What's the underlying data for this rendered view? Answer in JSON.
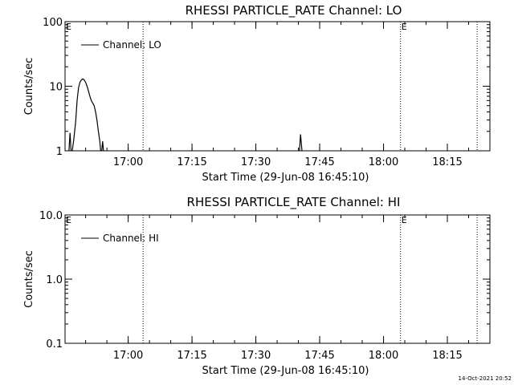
{
  "footer": {
    "timestamp": "14-Oct-2021 20:52"
  },
  "chart_data": [
    {
      "type": "line",
      "title": "RHESSI PARTICLE_RATE Channel: LO",
      "xlabel": "Start Time (29-Jun-08 16:45:10)",
      "ylabel": "Counts/sec",
      "y_scale": "log",
      "ylim": [
        1,
        100
      ],
      "y_ticks": [
        1,
        10,
        100
      ],
      "y_tick_labels": [
        "1",
        "10",
        "100"
      ],
      "xlim": [
        "16:45:10",
        "18:25:00"
      ],
      "x_ticks": [
        "17:00",
        "17:15",
        "17:30",
        "17:45",
        "18:00",
        "18:15"
      ],
      "legend": {
        "position": "top-left",
        "entries": [
          "Channel: LO"
        ]
      },
      "vertical_markers": [
        {
          "time": "17:03:30",
          "label": ""
        },
        {
          "time": "18:04:00",
          "label": ""
        },
        {
          "time": "18:22:00",
          "label": ""
        }
      ],
      "marker_labels": [
        {
          "time": "16:45:10",
          "text": "E"
        },
        {
          "time": "18:04:00",
          "text": "E"
        }
      ],
      "series": [
        {
          "points": [
            [
              "16:46:00",
              0.8
            ],
            [
              "16:46:20",
              1.9
            ],
            [
              "16:46:40",
              0.8
            ],
            [
              "16:47:10",
              1.4
            ],
            [
              "16:47:40",
              2.8
            ],
            [
              "16:48:00",
              6.0
            ],
            [
              "16:48:20",
              9.5
            ],
            [
              "16:48:40",
              11.5
            ],
            [
              "16:49:00",
              12.5
            ],
            [
              "16:49:20",
              13.0
            ],
            [
              "16:49:40",
              12.5
            ],
            [
              "16:50:00",
              11.5
            ],
            [
              "16:50:20",
              10.0
            ],
            [
              "16:50:40",
              8.5
            ],
            [
              "16:51:00",
              7.0
            ],
            [
              "16:51:20",
              6.0
            ],
            [
              "16:51:40",
              5.5
            ],
            [
              "16:52:00",
              5.0
            ],
            [
              "16:52:20",
              4.0
            ],
            [
              "16:52:40",
              3.0
            ],
            [
              "16:53:00",
              2.0
            ],
            [
              "16:53:20",
              1.4
            ],
            [
              "16:53:40",
              0.8
            ],
            [
              "16:54:00",
              1.4
            ],
            [
              "16:54:20",
              0.8
            ]
          ]
        },
        {
          "points": [
            [
              "17:40:10",
              0.8
            ],
            [
              "17:40:30",
              1.8
            ],
            [
              "17:40:50",
              1.0
            ],
            [
              "17:41:10",
              0.8
            ]
          ]
        }
      ]
    },
    {
      "type": "line",
      "title": "RHESSI PARTICLE_RATE Channel: HI",
      "xlabel": "Start Time (29-Jun-08 16:45:10)",
      "ylabel": "Counts/sec",
      "y_scale": "log",
      "ylim": [
        0.1,
        10
      ],
      "y_ticks": [
        0.1,
        1,
        10
      ],
      "y_tick_labels": [
        "0.1",
        "1.0",
        "10.0"
      ],
      "xlim": [
        "16:45:10",
        "18:25:00"
      ],
      "x_ticks": [
        "17:00",
        "17:15",
        "17:30",
        "17:45",
        "18:00",
        "18:15"
      ],
      "legend": {
        "position": "top-left",
        "entries": [
          "Channel: HI"
        ]
      },
      "vertical_markers": [
        {
          "time": "17:03:30",
          "label": ""
        },
        {
          "time": "18:04:00",
          "label": ""
        },
        {
          "time": "18:22:00",
          "label": ""
        }
      ],
      "marker_labels": [
        {
          "time": "16:45:10",
          "text": "E"
        },
        {
          "time": "18:04:00",
          "text": "E"
        }
      ],
      "series": []
    }
  ]
}
